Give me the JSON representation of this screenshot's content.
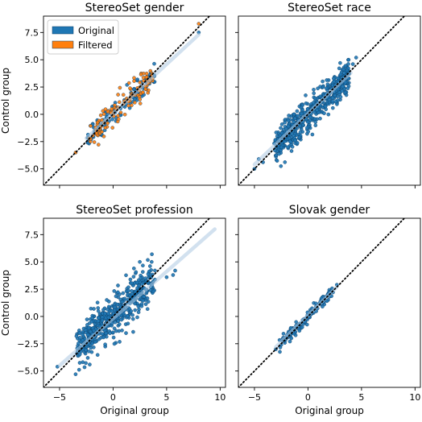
{
  "chart_data": [
    {
      "type": "scatter",
      "title": "StereoSet gender",
      "xlabel": "",
      "ylabel": "Control group",
      "xlim": [
        -6.5,
        10.5
      ],
      "ylim": [
        -6.5,
        9.0
      ],
      "xticks": [
        -5,
        0,
        5,
        10
      ],
      "yticks": [
        -5.0,
        -2.5,
        0.0,
        2.5,
        5.0,
        7.5
      ],
      "show_xticklabels": false,
      "show_yticklabels": true,
      "diagonal": "y=x",
      "legend": {
        "position": "top-left",
        "entries": [
          "Original",
          "Filtered"
        ]
      },
      "series": [
        {
          "name": "Original",
          "color": "#1f77b4",
          "fit": {
            "x": [
              -2.5,
              8
            ],
            "y": [
              -2.2,
              7.3
            ]
          },
          "cloud": {
            "x_range": [
              -2.5,
              4
            ],
            "slope": 0.92,
            "spread": 0.55,
            "n": 130,
            "seed": 11
          },
          "points": [
            [
              8,
              7.5
            ]
          ]
        },
        {
          "name": "Filtered",
          "color": "#ff7f0e",
          "cloud": {
            "x_range": [
              -2.3,
              3.8
            ],
            "slope": 0.92,
            "spread": 0.6,
            "n": 120,
            "seed": 23
          },
          "points": [
            [
              8,
              8.3
            ],
            [
              -3.5,
              -3.5
            ]
          ]
        }
      ]
    },
    {
      "type": "scatter",
      "title": "StereoSet race",
      "xlabel": "",
      "ylabel": "",
      "xlim": [
        -6.5,
        10.5
      ],
      "ylim": [
        -6.5,
        9.0
      ],
      "xticks": [
        -5,
        0,
        5,
        10
      ],
      "yticks": [
        -5.0,
        -2.5,
        0.0,
        2.5,
        5.0,
        7.5
      ],
      "show_xticklabels": false,
      "show_yticklabels": false,
      "diagonal": "y=x",
      "series": [
        {
          "name": "",
          "color": "#1f77b4",
          "fit": {
            "x": [
              -5,
              4
            ],
            "y": [
              -4.6,
              3.8
            ]
          },
          "cloud": {
            "x_range": [
              -3.2,
              4
            ],
            "slope": 0.95,
            "spread": 0.8,
            "n": 520,
            "seed": 37
          },
          "points": [
            [
              -5,
              -5
            ],
            [
              -4.2,
              -4.4
            ],
            [
              -4.6,
              -4.1
            ],
            [
              4.5,
              5.2
            ],
            [
              3.8,
              5.0
            ],
            [
              4.2,
              4.6
            ]
          ]
        }
      ]
    },
    {
      "type": "scatter",
      "title": "StereoSet profession",
      "xlabel": "Original group",
      "ylabel": "Control group",
      "xlim": [
        -6.5,
        10.5
      ],
      "ylim": [
        -6.5,
        9.0
      ],
      "xticks": [
        -5,
        0,
        5,
        10
      ],
      "yticks": [
        -5.0,
        -2.5,
        0.0,
        2.5,
        5.0,
        7.5
      ],
      "show_xticklabels": true,
      "show_yticklabels": true,
      "diagonal": "y=x",
      "series": [
        {
          "name": "",
          "color": "#1f77b4",
          "fit": {
            "x": [
              -5,
              9.5
            ],
            "y": [
              -4.5,
              8
            ]
          },
          "cloud": {
            "x_range": [
              -3.5,
              4
            ],
            "slope": 0.85,
            "spread": 1.0,
            "n": 520,
            "seed": 53
          },
          "points": [
            [
              -5.2,
              -4.6
            ],
            [
              -3.5,
              -5.3
            ],
            [
              5.6,
              3.8
            ],
            [
              5,
              3.6
            ],
            [
              5.8,
              4.2
            ],
            [
              3.6,
              5.0
            ],
            [
              2.5,
              5.0
            ]
          ]
        }
      ]
    },
    {
      "type": "scatter",
      "title": "Slovak gender",
      "xlabel": "Original group",
      "ylabel": "",
      "xlim": [
        -6.5,
        10.5
      ],
      "ylim": [
        -6.5,
        9.0
      ],
      "xticks": [
        -5,
        0,
        5,
        10
      ],
      "yticks": [
        -5.0,
        -2.5,
        0.0,
        2.5,
        5.0,
        7.5
      ],
      "show_xticklabels": true,
      "show_yticklabels": false,
      "diagonal": "y=x",
      "series": [
        {
          "name": "",
          "color": "#1f77b4",
          "fit": {
            "x": [
              -3,
              2.7
            ],
            "y": [
              -2.8,
              2.7
            ]
          },
          "cloud": {
            "x_range": [
              -2.8,
              2.6
            ],
            "slope": 1.0,
            "spread": 0.3,
            "n": 140,
            "seed": 71
          },
          "points": [
            [
              -3,
              -3
            ],
            [
              2.7,
              2.9
            ]
          ]
        }
      ]
    }
  ]
}
